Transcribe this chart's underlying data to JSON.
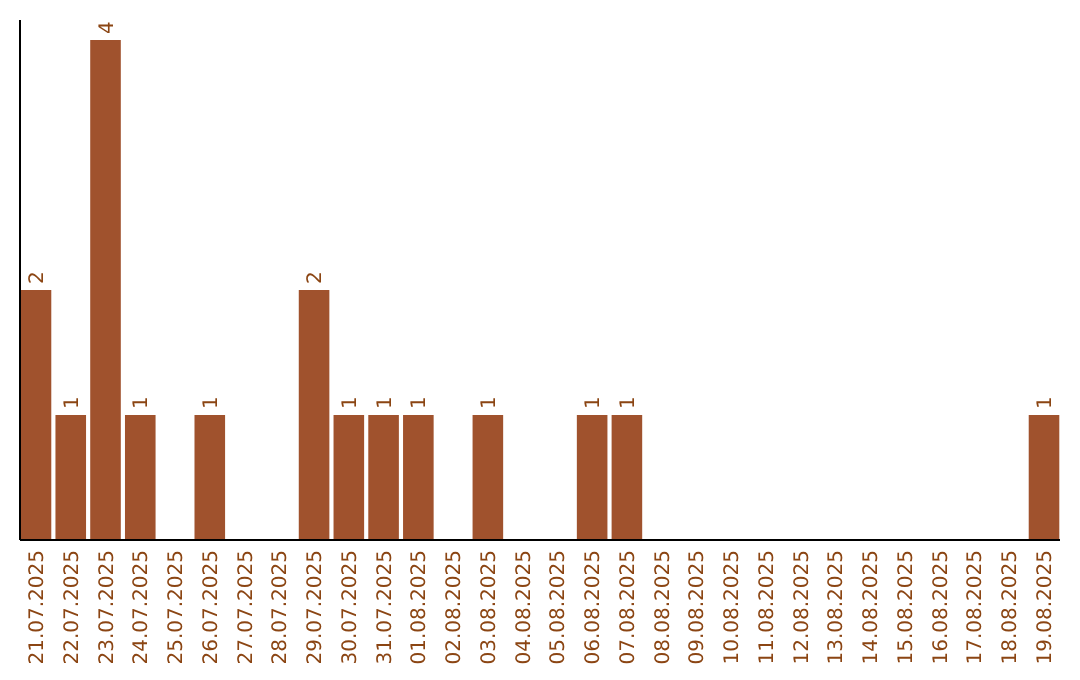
{
  "chart_data": {
    "type": "bar",
    "categories": [
      "21.07.2025",
      "22.07.2025",
      "23.07.2025",
      "24.07.2025",
      "25.07.2025",
      "26.07.2025",
      "27.07.2025",
      "28.07.2025",
      "29.07.2025",
      "30.07.2025",
      "31.07.2025",
      "01.08.2025",
      "02.08.2025",
      "03.08.2025",
      "04.08.2025",
      "05.08.2025",
      "06.08.2025",
      "07.08.2025",
      "08.08.2025",
      "09.08.2025",
      "10.08.2025",
      "11.08.2025",
      "12.08.2025",
      "13.08.2025",
      "14.08.2025",
      "15.08.2025",
      "16.08.2025",
      "17.08.2025",
      "18.08.2025",
      "19.08.2025"
    ],
    "values": [
      2,
      1,
      4,
      1,
      0,
      1,
      0,
      0,
      2,
      1,
      1,
      1,
      0,
      1,
      0,
      0,
      1,
      1,
      0,
      0,
      0,
      0,
      0,
      0,
      0,
      0,
      0,
      0,
      0,
      1
    ],
    "value_labels": [
      "2",
      "1",
      "4",
      "1",
      null,
      "1",
      null,
      null,
      "2",
      "1",
      "1",
      "1",
      null,
      "1",
      null,
      null,
      "1",
      "1",
      null,
      null,
      null,
      null,
      null,
      null,
      null,
      null,
      null,
      null,
      null,
      "1"
    ],
    "color": "#a0522d"
  }
}
